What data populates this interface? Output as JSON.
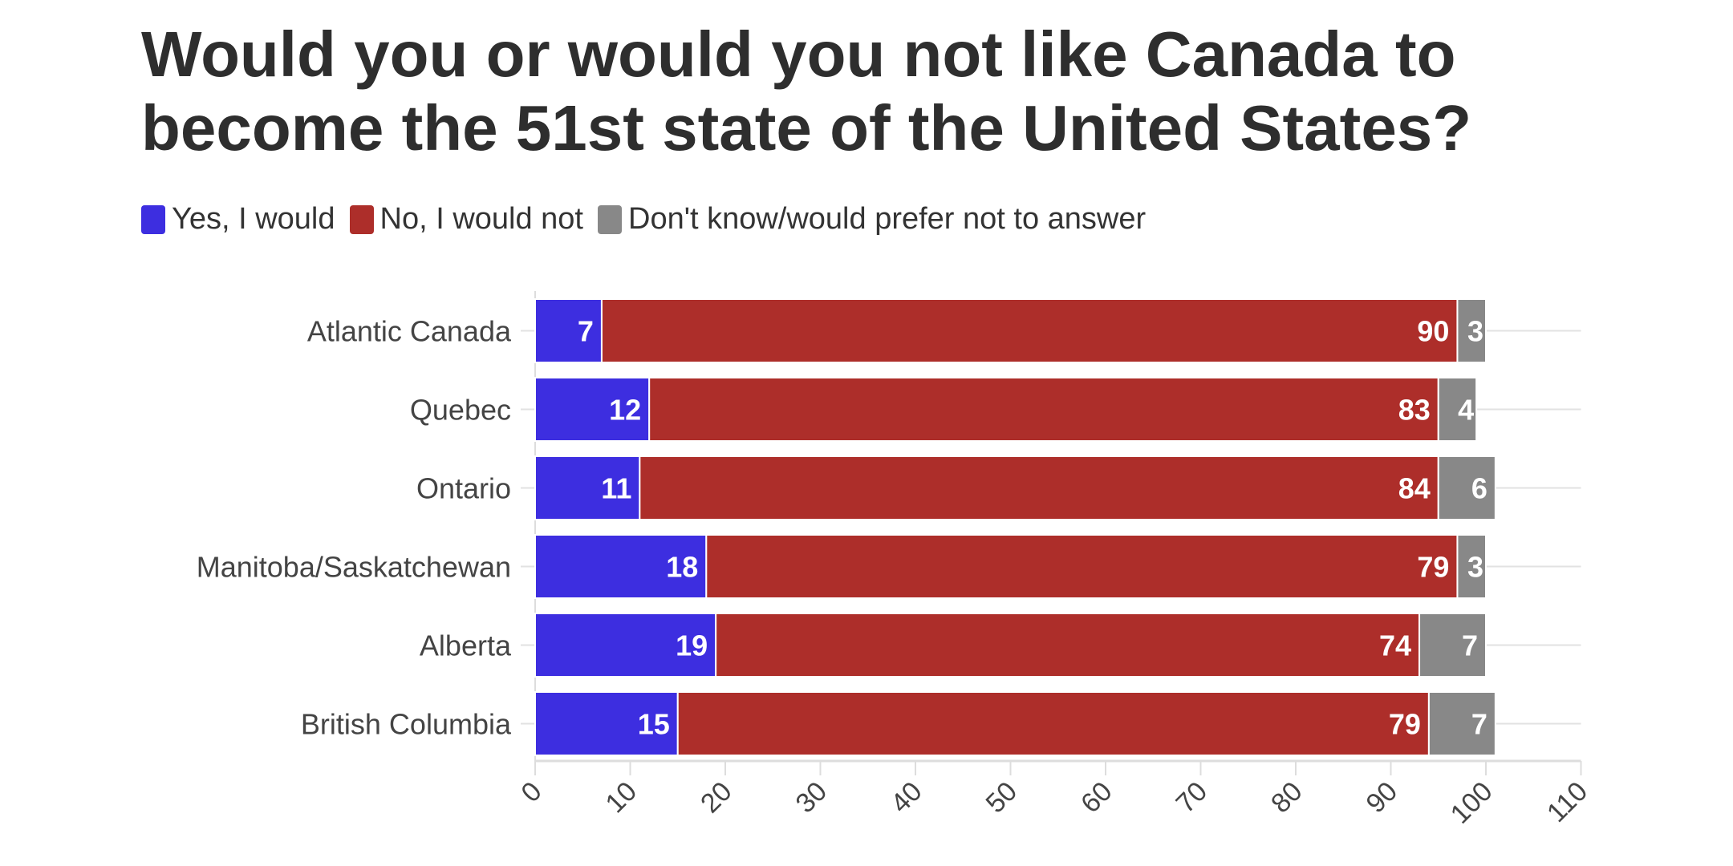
{
  "chart_data": {
    "type": "bar",
    "orientation": "horizontal",
    "stacked": true,
    "title": "Would you or would you not like Canada to become the 51st state of the United States?",
    "categories": [
      "Atlantic Canada",
      "Quebec",
      "Ontario",
      "Manitoba/Saskatchewan",
      "Alberta",
      "British Columbia"
    ],
    "series": [
      {
        "name": "Yes, I would",
        "color": "#3d2ee0",
        "values": [
          7,
          12,
          11,
          18,
          19,
          15
        ]
      },
      {
        "name": "No, I would not",
        "color": "#ad2e2a",
        "values": [
          90,
          83,
          84,
          79,
          74,
          79
        ]
      },
      {
        "name": "Don't know/would prefer not to answer",
        "color": "#888888",
        "values": [
          3,
          4,
          6,
          3,
          7,
          7
        ]
      }
    ],
    "xlim": [
      0,
      110
    ],
    "xticks": [
      0,
      10,
      20,
      30,
      40,
      50,
      60,
      70,
      80,
      90,
      100,
      110
    ],
    "xlabel": "",
    "ylabel": "",
    "legend": "top-left",
    "data_labels": true,
    "grid": "horizontal row lines"
  }
}
